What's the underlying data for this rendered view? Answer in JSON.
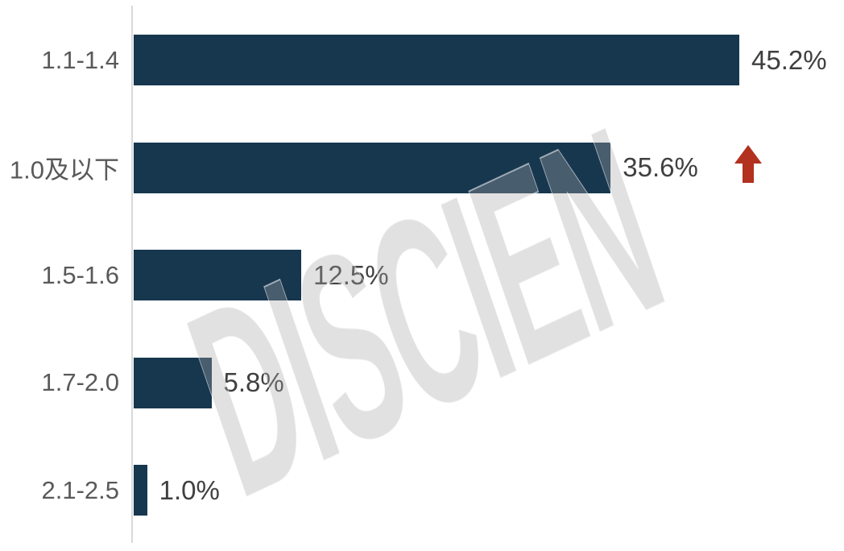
{
  "chart_data": {
    "type": "bar",
    "orientation": "horizontal",
    "title": "",
    "xlabel": "",
    "ylabel": "",
    "categories": [
      "1.1-1.4",
      "1.0及以下",
      "1.5-1.6",
      "1.7-2.0",
      "2.1-2.5"
    ],
    "values": [
      45.2,
      35.6,
      12.5,
      5.8,
      1.0
    ],
    "value_labels": [
      "45.2%",
      "35.6%",
      "12.5%",
      "5.8%",
      "1.0%"
    ],
    "xlim": [
      0,
      47
    ],
    "grid": false,
    "legend": false,
    "annotations": [
      {
        "row_index": 1,
        "type": "up-arrow",
        "meaning": "increase-indicator",
        "color": "#b2311f"
      }
    ]
  },
  "watermark": {
    "text": "DISCIEN",
    "color": "#e2e2e2"
  },
  "colors": {
    "bar": "#17374f",
    "arrow": "#b2311f",
    "axis_line": "#d9d9d9",
    "category_label": "#595959",
    "value_label": "#404040"
  }
}
